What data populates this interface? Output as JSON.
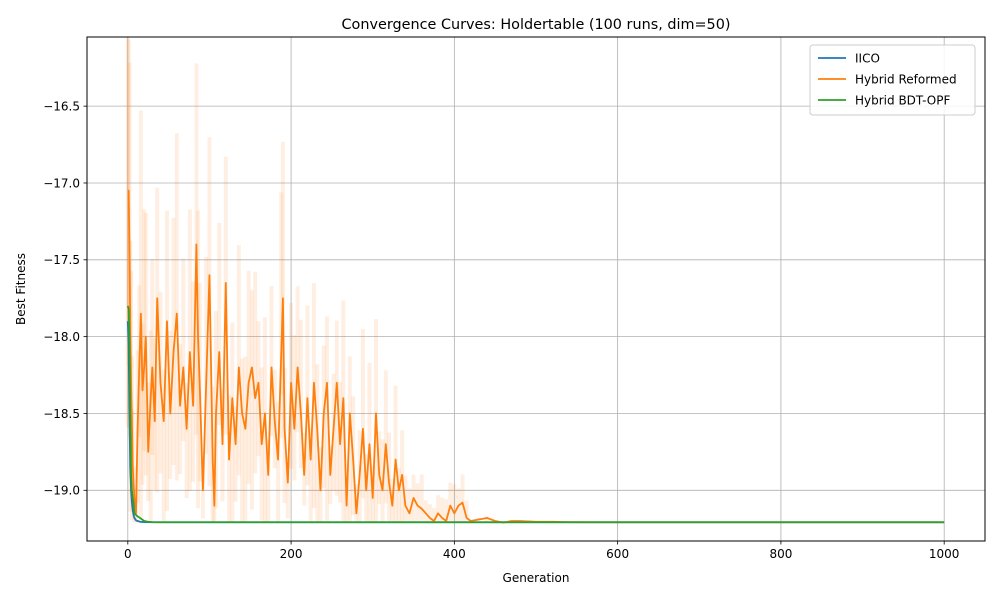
{
  "chart_data": {
    "type": "line",
    "title": "Convergence Curves: Holdertable (100 runs, dim=50)",
    "xlabel": "Generation",
    "ylabel": "Best Fitness",
    "xlim": [
      -50,
      1050
    ],
    "ylim": [
      -19.33,
      -16.05
    ],
    "xticks": [
      0,
      200,
      400,
      600,
      800,
      1000
    ],
    "yticks": [
      -19.0,
      -18.5,
      -18.0,
      -17.5,
      -17.0,
      -16.5
    ],
    "xtick_labels": [
      "0",
      "200",
      "400",
      "600",
      "800",
      "1000"
    ],
    "ytick_labels": [
      "−19.0",
      "−18.5",
      "−18.0",
      "−17.5",
      "−17.0",
      "−16.5"
    ],
    "grid": true,
    "legend_position": "top-right",
    "final_value": -19.208,
    "series": [
      {
        "name": "IICO",
        "color": "#1f77b4",
        "x": [
          0,
          1,
          2,
          3,
          4,
          5,
          6,
          7,
          8,
          10,
          12,
          15,
          20,
          30,
          50,
          100,
          200,
          400,
          600,
          800,
          1000
        ],
        "y": [
          -17.9,
          -18.05,
          -18.5,
          -18.85,
          -19.0,
          -19.08,
          -19.13,
          -19.16,
          -19.18,
          -19.195,
          -19.2,
          -19.205,
          -19.207,
          -19.208,
          -19.208,
          -19.208,
          -19.208,
          -19.208,
          -19.208,
          -19.208,
          -19.208
        ]
      },
      {
        "name": "Hybrid Reformed",
        "color": "#ff7f0e",
        "x": [
          0,
          1,
          2,
          3,
          4,
          5,
          6,
          8,
          10,
          12,
          14,
          16,
          18,
          20,
          22,
          25,
          28,
          30,
          33,
          36,
          40,
          44,
          48,
          52,
          56,
          60,
          64,
          68,
          72,
          76,
          80,
          84,
          86,
          88,
          92,
          96,
          100,
          104,
          106,
          108,
          112,
          116,
          120,
          124,
          128,
          132,
          136,
          140,
          144,
          148,
          152,
          156,
          160,
          164,
          168,
          172,
          176,
          180,
          184,
          188,
          190,
          192,
          196,
          200,
          204,
          208,
          212,
          216,
          220,
          224,
          228,
          232,
          236,
          240,
          244,
          248,
          252,
          256,
          260,
          264,
          268,
          272,
          276,
          280,
          284,
          288,
          292,
          296,
          300,
          304,
          308,
          312,
          316,
          320,
          324,
          328,
          332,
          336,
          340,
          345,
          350,
          355,
          360,
          365,
          370,
          375,
          380,
          385,
          390,
          395,
          400,
          405,
          410,
          415,
          420,
          430,
          440,
          450,
          460,
          470,
          480,
          500,
          520,
          540,
          560,
          600,
          700,
          800,
          1000
        ],
        "y": [
          -17.05,
          -17.05,
          -17.4,
          -17.95,
          -18.3,
          -18.55,
          -18.85,
          -19.05,
          -19.15,
          -18.6,
          -18.2,
          -17.85,
          -18.35,
          -18.2,
          -18.0,
          -18.75,
          -18.4,
          -18.2,
          -18.55,
          -17.75,
          -18.3,
          -18.55,
          -17.9,
          -18.5,
          -18.1,
          -17.85,
          -18.45,
          -18.2,
          -18.6,
          -18.1,
          -18.45,
          -17.4,
          -18.0,
          -18.3,
          -19.0,
          -18.3,
          -17.6,
          -18.8,
          -19.1,
          -18.5,
          -18.1,
          -18.7,
          -17.65,
          -18.8,
          -18.4,
          -18.7,
          -18.2,
          -18.5,
          -18.6,
          -18.3,
          -18.2,
          -18.4,
          -18.3,
          -18.7,
          -18.5,
          -18.9,
          -18.2,
          -18.55,
          -18.8,
          -18.1,
          -17.75,
          -18.6,
          -18.95,
          -18.3,
          -18.6,
          -18.2,
          -18.5,
          -18.9,
          -18.4,
          -18.8,
          -18.3,
          -18.6,
          -19.0,
          -18.5,
          -18.3,
          -18.9,
          -18.6,
          -18.3,
          -18.7,
          -18.4,
          -19.1,
          -18.5,
          -18.8,
          -19.15,
          -18.9,
          -18.6,
          -19.0,
          -18.7,
          -19.05,
          -18.5,
          -18.9,
          -19.0,
          -18.7,
          -18.95,
          -19.1,
          -18.8,
          -19.0,
          -18.9,
          -19.1,
          -19.15,
          -19.05,
          -19.1,
          -19.12,
          -19.15,
          -19.18,
          -19.2,
          -19.15,
          -19.18,
          -19.2,
          -19.1,
          -19.15,
          -19.1,
          -19.08,
          -19.18,
          -19.2,
          -19.19,
          -19.18,
          -19.2,
          -19.21,
          -19.2,
          -19.2,
          -19.205,
          -19.205,
          -19.207,
          -19.208,
          -19.208,
          -19.208,
          -19.208,
          -19.208
        ]
      },
      {
        "name": "Hybrid BDT-OPF",
        "color": "#2ca02c",
        "x": [
          0,
          1,
          2,
          3,
          4,
          5,
          6,
          7,
          8,
          10,
          12,
          15,
          20,
          25,
          30,
          40,
          50,
          100,
          200,
          400,
          600,
          800,
          1000
        ],
        "y": [
          -17.8,
          -17.82,
          -18.0,
          -18.5,
          -18.9,
          -19.0,
          -19.05,
          -19.08,
          -19.15,
          -19.16,
          -19.17,
          -19.18,
          -19.2,
          -19.205,
          -19.207,
          -19.208,
          -19.208,
          -19.208,
          -19.208,
          -19.208,
          -19.208,
          -19.208,
          -19.208
        ]
      }
    ]
  }
}
